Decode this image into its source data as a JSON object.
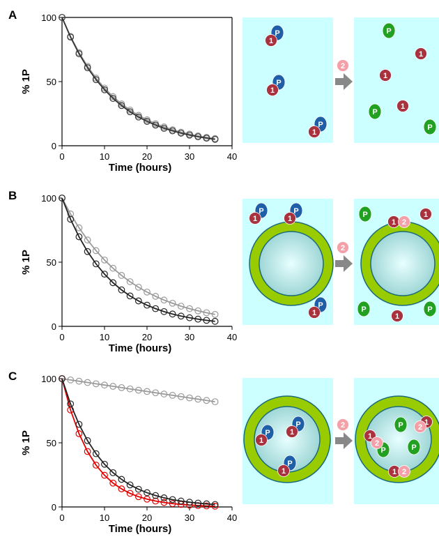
{
  "chart_data": [
    {
      "type": "line",
      "panel_label": "A",
      "ylabel": "% 1P",
      "xlabel": "Time (hours)",
      "frame": true,
      "xlim": [
        0,
        40
      ],
      "xticks": [
        0,
        10,
        20,
        30,
        40
      ],
      "ylim": [
        0,
        100
      ],
      "yticks": [
        0,
        50,
        100
      ],
      "x": [
        0,
        2,
        4,
        6,
        8,
        10,
        12,
        14,
        16,
        18,
        20,
        22,
        24,
        26,
        28,
        30,
        32,
        34,
        36
      ],
      "series": [
        {
          "color": "#999999",
          "values": [
            100,
            85.2,
            72.6,
            61.9,
            52.7,
            44.9,
            38.3,
            32.6,
            27.8,
            23.7,
            20.2,
            17.2,
            14.7,
            12.5,
            10.6,
            9.1,
            7.7,
            6.6,
            5.6
          ]
        },
        {
          "color": "#333333",
          "values": [
            100,
            84.7,
            71.7,
            60.8,
            51.5,
            43.6,
            36.9,
            31.3,
            26.5,
            22.4,
            19.0,
            16.1,
            13.6,
            11.6,
            9.8,
            8.3,
            7.0,
            5.9,
            5.0
          ]
        }
      ]
    },
    {
      "type": "line",
      "panel_label": "B",
      "ylabel": "% 1P",
      "xlabel": "Time (hours)",
      "frame": false,
      "xlim": [
        0,
        40
      ],
      "xticks": [
        0,
        10,
        20,
        30,
        40
      ],
      "ylim": [
        0,
        100
      ],
      "yticks": [
        0,
        50,
        100
      ],
      "x": [
        0,
        2,
        4,
        6,
        8,
        10,
        12,
        14,
        16,
        18,
        20,
        22,
        24,
        26,
        28,
        30,
        32,
        34,
        36
      ],
      "series": [
        {
          "color": "#999999",
          "values": [
            100,
            87.6,
            76.8,
            67.3,
            59.0,
            51.7,
            45.3,
            39.7,
            34.8,
            30.5,
            26.7,
            23.4,
            20.5,
            18.0,
            15.7,
            13.8,
            12.1,
            10.6,
            9.3
          ]
        },
        {
          "color": "#222222",
          "values": [
            100,
            83.5,
            69.8,
            58.3,
            48.7,
            40.7,
            34.0,
            28.4,
            23.7,
            19.8,
            16.5,
            13.8,
            11.5,
            9.6,
            8.0,
            6.7,
            5.6,
            4.7,
            3.9
          ]
        }
      ]
    },
    {
      "type": "line",
      "panel_label": "C",
      "ylabel": "% 1P",
      "xlabel": "Time (hours)",
      "frame": false,
      "xlim": [
        0,
        40
      ],
      "xticks": [
        0,
        10,
        20,
        30,
        40
      ],
      "ylim": [
        0,
        100
      ],
      "yticks": [
        0,
        50,
        100
      ],
      "x": [
        0,
        2,
        4,
        6,
        8,
        10,
        12,
        14,
        16,
        18,
        20,
        22,
        24,
        26,
        28,
        30,
        32,
        34,
        36
      ],
      "series": [
        {
          "color": "#999999",
          "values": [
            100,
            99,
            98,
            97,
            96,
            95,
            94,
            93,
            92,
            91,
            90,
            89,
            88,
            87,
            86,
            85,
            84,
            83,
            82
          ]
        },
        {
          "color": "#e00000",
          "values": [
            100,
            75.6,
            57.1,
            43.2,
            32.6,
            24.7,
            18.6,
            14.1,
            10.6,
            8.0,
            6.1,
            4.6,
            3.5,
            2.6,
            2.0,
            1.5,
            1.1,
            0.8,
            0.6
          ]
        },
        {
          "color": "#222222",
          "values": [
            100,
            80.3,
            64.4,
            51.7,
            41.5,
            33.3,
            26.7,
            21.5,
            17.2,
            13.8,
            11.1,
            8.9,
            7.1,
            5.7,
            4.6,
            3.7,
            3.0,
            2.4,
            1.9
          ]
        }
      ]
    }
  ],
  "diagram": {
    "labels": [
      "P",
      "1",
      "2"
    ]
  }
}
